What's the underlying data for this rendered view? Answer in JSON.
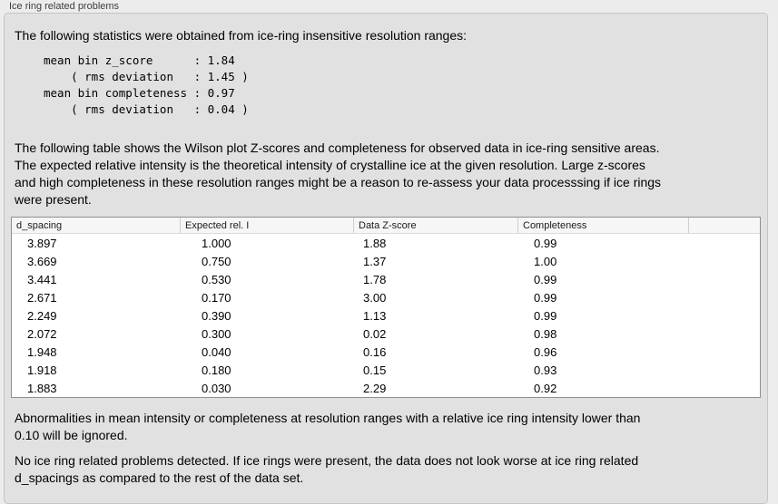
{
  "panel": {
    "title": "Ice ring related problems"
  },
  "intro_text": "The following statistics were obtained from ice-ring insensitive resolution ranges:",
  "stats_block": "mean bin z_score      : 1.84\n    ( rms deviation   : 1.45 )\nmean bin completeness : 0.97\n    ( rms deviation   : 0.04 )",
  "stats": {
    "mean_bin_z_score": "1.84",
    "z_score_rms_deviation": "1.45",
    "mean_bin_completeness": "0.97",
    "completeness_rms_deviation": "0.04"
  },
  "table_description": "The following table shows the Wilson plot Z-scores and completeness for observed data in ice-ring sensitive areas.\nThe expected relative intensity is the theoretical intensity of crystalline ice at the given resolution. Large z-scores\nand high completeness in these resolution ranges might be a reason to re-assess your data processsing if ice rings\nwere present.",
  "table": {
    "columns": [
      "d_spacing",
      "Expected rel. I",
      "Data Z-score",
      "Completeness",
      ""
    ],
    "rows": [
      [
        "3.897",
        "1.000",
        "1.88",
        "0.99"
      ],
      [
        "3.669",
        "0.750",
        "1.37",
        "1.00"
      ],
      [
        "3.441",
        "0.530",
        "1.78",
        "0.99"
      ],
      [
        "2.671",
        "0.170",
        "3.00",
        "0.99"
      ],
      [
        "2.249",
        "0.390",
        "1.13",
        "0.99"
      ],
      [
        "2.072",
        "0.300",
        "0.02",
        "0.98"
      ],
      [
        "1.948",
        "0.040",
        "0.16",
        "0.96"
      ],
      [
        "1.918",
        "0.180",
        "0.15",
        "0.93"
      ],
      [
        "1.883",
        "0.030",
        "2.29",
        "0.92"
      ]
    ]
  },
  "ignore_note": "Abnormalities in mean intensity or completeness at resolution ranges with a relative ice ring intensity lower than\n0.10 will be ignored.",
  "conclusion": "No ice ring related problems detected. If ice rings were present, the data does not look worse at ice ring related\nd_spacings as compared to the rest of the data set.",
  "colors": {
    "page_bg": "#ececec",
    "groupbox_bg": "#e1e1e1",
    "groupbox_border": "#c4c4c4",
    "table_bg": "#ffffff",
    "table_border": "#8f8f8f",
    "table_header_bg": "#f6f6f6",
    "text": "#000000"
  }
}
